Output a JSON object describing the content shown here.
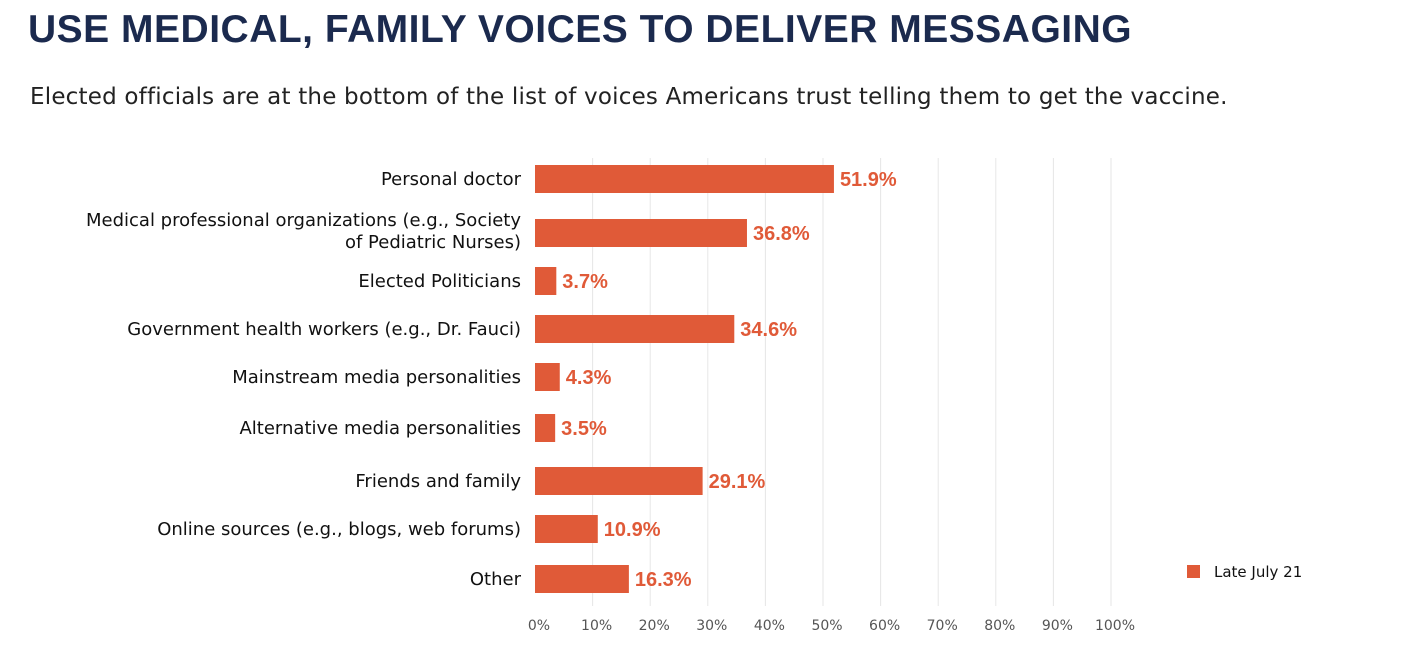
{
  "header": {
    "title": "USE MEDICAL, FAMILY VOICES TO DELIVER MESSAGING",
    "subtitle": "Elected officials are at the bottom of the list of voices Americans trust telling them to get the vaccine."
  },
  "colors": {
    "bar": "#e05a38",
    "title": "#1b2a4e",
    "grid": "#e6e6e6"
  },
  "chart_data": {
    "type": "bar",
    "orientation": "horizontal",
    "categories": [
      [
        "Personal doctor"
      ],
      [
        "Medical professional organizations (e.g., Society",
        "of Pediatric Nurses)"
      ],
      [
        "Elected Politicians"
      ],
      [
        "Government health workers (e.g., Dr. Fauci)"
      ],
      [
        "Mainstream media personalities"
      ],
      [
        "Alternative media personalities"
      ],
      [
        "Friends and family"
      ],
      [
        "Online sources (e.g., blogs, web forums)"
      ],
      [
        "Other"
      ]
    ],
    "series": [
      {
        "name": "Late July 21",
        "values": [
          51.9,
          36.8,
          3.7,
          34.6,
          4.3,
          3.5,
          29.1,
          10.9,
          16.3
        ],
        "value_labels": [
          "51.9%",
          "36.8%",
          "3.7%",
          "34.6%",
          "4.3%",
          "3.5%",
          "29.1%",
          "10.9%",
          "16.3%"
        ]
      }
    ],
    "xlim": [
      0,
      100
    ],
    "xticks": [
      0,
      10,
      20,
      30,
      40,
      50,
      60,
      70,
      80,
      90,
      100
    ],
    "xtick_labels": [
      "0%",
      "10%",
      "20%",
      "30%",
      "40%",
      "50%",
      "60%",
      "70%",
      "80%",
      "90%",
      "100%"
    ],
    "grid": true,
    "legend_position": "bottom-right"
  }
}
